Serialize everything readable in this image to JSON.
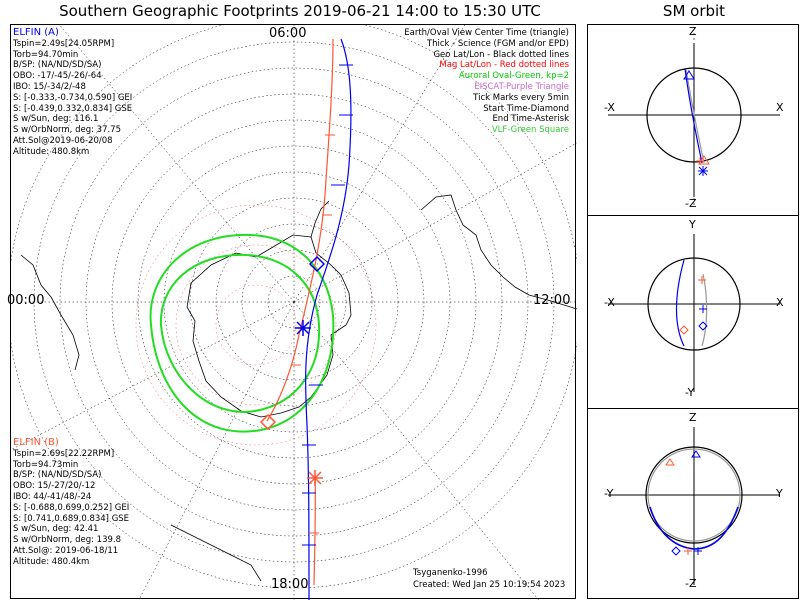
{
  "title": "Southern Geographic Footprints 2019-06-21 14:00 to 15:30 UTC",
  "sm_title": "SM orbit",
  "time_labels": {
    "top": "06:00",
    "left": "00:00",
    "right": "12:00",
    "bottom": "18:00"
  },
  "sc_a": {
    "name": "ELFIN (A)",
    "lines": [
      "Tspin=2.49s[24.05RPM]",
      "Torb=94.70min",
      "B/SP: (NA/ND/SD/SA)",
      "OBO: -17/-45/-26/-64",
      "IBO: 15/-34/2/-48",
      "S: [-0.333,-0.734,0.590] GEI",
      "S: [-0.439,0.332,0.834] GSE",
      "S w/Sun, deg: 116.1",
      "S w/OrbNorm, deg: 37.75",
      "Att.Sol@2019-06-20/08",
      "Altitude: 480.8km"
    ]
  },
  "sc_b": {
    "name": "ELFIN (B)",
    "lines": [
      "Tspin=2.69s[22.22RPM]",
      "Torb=94.73min",
      "B/SP: (NA/ND/SD/SA)",
      "OBO: 15/-27/20/-12",
      "IBO: 44/-41/48/-24",
      "S: [-0.688,0.699,0.252] GEI",
      "S: [0.741,0.689,0.834] GSE",
      "S w/Sun, deg: 42.41",
      "S w/OrbNorm, deg: 139.8",
      "Att.Sol@: 2019-06-18/11",
      "Altitude: 480.4km"
    ]
  },
  "legend": [
    {
      "text": "Earth/Oval View Center Time (triangle)",
      "color": "#000000"
    },
    {
      "text": "Thick - Science (FGM and/or EPD)",
      "color": "#000000"
    },
    {
      "text": "Geo Lat/Lon - Black dotted lines",
      "color": "#000000"
    },
    {
      "text": "Mag Lat/Lon - Red dotted lines",
      "color": "#ff0000"
    },
    {
      "text": "Auroral Oval-Green, kp=2",
      "color": "#00dd00"
    },
    {
      "text": "EISCAT-Purple Triangle",
      "color": "#cc66cc"
    },
    {
      "text": "Tick Marks every 5min",
      "color": "#000000"
    },
    {
      "text": "Start Time-Diamond",
      "color": "#000000"
    },
    {
      "text": "End Time-Asterisk",
      "color": "#000000"
    },
    {
      "text": "VLF-Green Square",
      "color": "#33cc33"
    }
  ],
  "footer": {
    "model": "Tsyganenko-1996",
    "created": "Created: Wed Jan 25 10:19:54 2023"
  },
  "sm_panels": [
    {
      "top": "Z",
      "bottom": "-Z",
      "left": "-X",
      "right": "X"
    },
    {
      "top": "Y",
      "bottom": "-Y",
      "left": "-X",
      "right": "X"
    },
    {
      "top": "Z",
      "bottom": "-Z",
      "left": "-Y",
      "right": "Y"
    }
  ],
  "colors": {
    "sc_a": "#0000ee",
    "sc_b": "#ff5533",
    "oval": "#22dd22",
    "grid": "#000000"
  }
}
